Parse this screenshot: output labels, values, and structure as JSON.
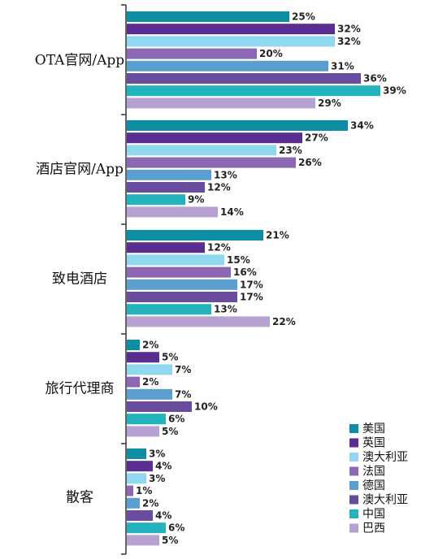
{
  "chart_data": {
    "type": "bar",
    "orientation": "horizontal",
    "categories": [
      "OTA官网/App",
      "酒店官网/App",
      "致电酒店",
      "旅行代理商",
      "散客"
    ],
    "value_suffix": "%",
    "xlim": [
      0,
      40
    ],
    "grid": false,
    "legend_position": "bottom-right",
    "series": [
      {
        "name": "美国",
        "color": "#0d8ea3",
        "values": [
          25,
          34,
          21,
          2,
          3
        ]
      },
      {
        "name": "英国",
        "color": "#5a2d91",
        "values": [
          32,
          27,
          12,
          5,
          4
        ]
      },
      {
        "name": "澳大利亚",
        "color": "#8fd8f0",
        "values": [
          32,
          23,
          15,
          7,
          3
        ]
      },
      {
        "name": "法国",
        "color": "#8c68b4",
        "values": [
          20,
          26,
          16,
          2,
          1
        ]
      },
      {
        "name": "德国",
        "color": "#5a9fd0",
        "values": [
          31,
          13,
          17,
          7,
          2
        ]
      },
      {
        "name": "澳大利亚",
        "color": "#6a4c9e",
        "values": [
          36,
          12,
          17,
          10,
          4
        ]
      },
      {
        "name": "中国",
        "color": "#22b3bd",
        "values": [
          39,
          9,
          13,
          6,
          6
        ]
      },
      {
        "name": "巴西",
        "color": "#b7a1d2",
        "values": [
          29,
          14,
          22,
          5,
          5
        ]
      }
    ]
  }
}
